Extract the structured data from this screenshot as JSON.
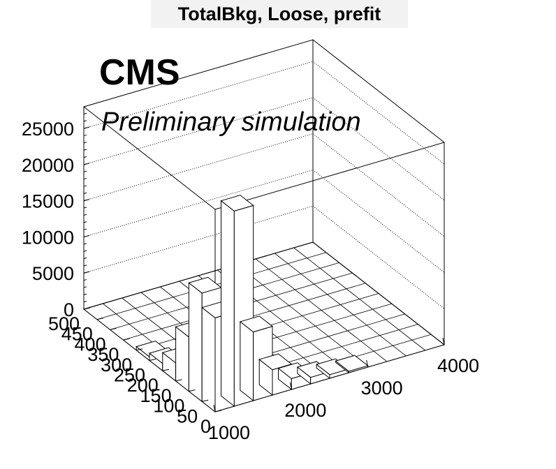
{
  "title": "TotalBkg, Loose, prefit",
  "cms_label": "CMS",
  "cms_sublabel": "Preliminary simulation",
  "chart_data": {
    "type": "lego",
    "title": "TotalBkg, Loose, prefit",
    "xlabel": "",
    "ylabel": "",
    "zlabel": "",
    "x_ticks": [
      "1000",
      "2000",
      "3000",
      "4000"
    ],
    "y_ticks": [
      "0",
      "50",
      "100",
      "150",
      "200",
      "250",
      "300",
      "350",
      "400",
      "450",
      "500"
    ],
    "z_ticks": [
      "0",
      "5000",
      "10000",
      "15000",
      "20000",
      "25000"
    ],
    "x_range": [
      1000,
      4000
    ],
    "y_range": [
      0,
      500
    ],
    "z_range": [
      0,
      28000
    ],
    "x_bin_edges": [
      1000,
      1250,
      1500,
      1750,
      2000,
      2250,
      2500,
      2750,
      3000,
      3250,
      3500,
      3750,
      4000
    ],
    "y_bin_edges": [
      0,
      50,
      100,
      150,
      200,
      250,
      300,
      350,
      400,
      450,
      500
    ],
    "grid": true,
    "bins": [
      {
        "x": [
          1000,
          1250
        ],
        "y": [
          0,
          50
        ],
        "z": 13000
      },
      {
        "x": [
          1250,
          1500
        ],
        "y": [
          0,
          50
        ],
        "z": 27000
      },
      {
        "x": [
          1500,
          1750
        ],
        "y": [
          0,
          50
        ],
        "z": 9500
      },
      {
        "x": [
          1750,
          2000
        ],
        "y": [
          0,
          50
        ],
        "z": 3500
      },
      {
        "x": [
          2000,
          2250
        ],
        "y": [
          0,
          50
        ],
        "z": 1500
      },
      {
        "x": [
          2250,
          2500
        ],
        "y": [
          0,
          50
        ],
        "z": 900
      },
      {
        "x": [
          2500,
          2750
        ],
        "y": [
          0,
          50
        ],
        "z": 500
      },
      {
        "x": [
          2750,
          3000
        ],
        "y": [
          0,
          50
        ],
        "z": 200
      },
      {
        "x": [
          1000,
          1250
        ],
        "y": [
          50,
          100
        ],
        "z": 15000
      },
      {
        "x": [
          1000,
          1250
        ],
        "y": [
          100,
          150
        ],
        "z": 7500
      },
      {
        "x": [
          1000,
          1250
        ],
        "y": [
          150,
          200
        ],
        "z": 2500
      },
      {
        "x": [
          1000,
          1250
        ],
        "y": [
          200,
          250
        ],
        "z": 1000
      },
      {
        "x": [
          1000,
          1250
        ],
        "y": [
          250,
          300
        ],
        "z": 500
      },
      {
        "x": [
          1250,
          1500
        ],
        "y": [
          50,
          100
        ],
        "z": 1000
      },
      {
        "x": [
          1500,
          1750
        ],
        "y": [
          50,
          100
        ],
        "z": 500
      },
      {
        "x": [
          1750,
          2000
        ],
        "y": [
          50,
          100
        ],
        "z": 300
      }
    ]
  }
}
